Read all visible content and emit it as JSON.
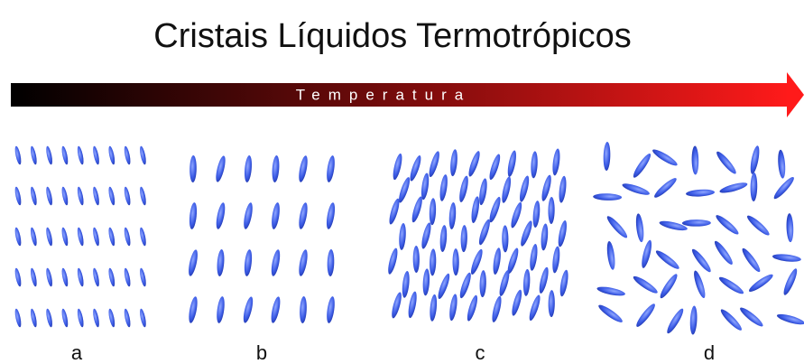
{
  "title": "Cristais Líquidos Termotrópicos",
  "arrow": {
    "label": "Temperatura"
  },
  "panels": [
    {
      "label": "a"
    },
    {
      "label": "b"
    },
    {
      "label": "c"
    },
    {
      "label": "d"
    }
  ]
}
